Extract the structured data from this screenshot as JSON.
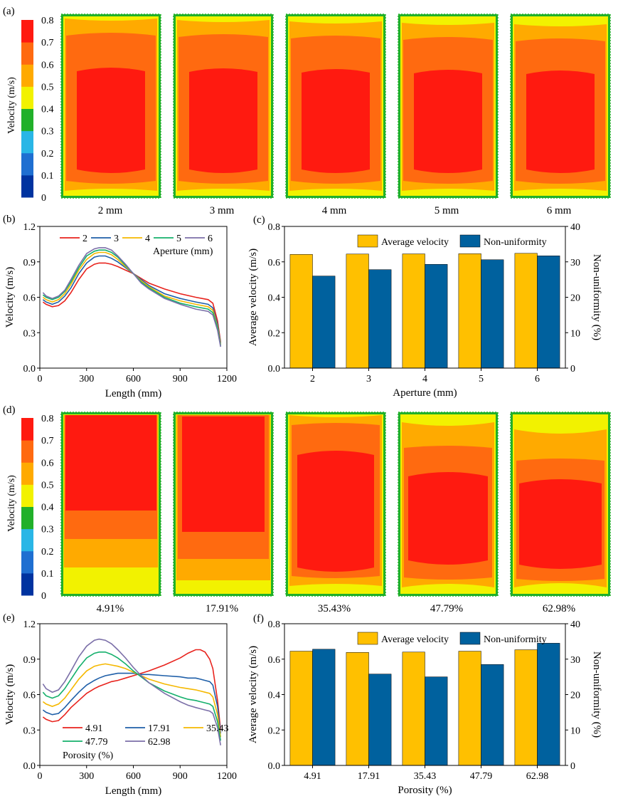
{
  "colors": {
    "scale": [
      "#0033a0",
      "#1f6fd1",
      "#29b6e6",
      "#21b02a",
      "#f2f200",
      "#ffaa00",
      "#ff6a10",
      "#ff1a10"
    ],
    "avg": "#FFC000",
    "nonuni": "#00619E",
    "lines5": [
      "#e8231d",
      "#1f5fa8",
      "#f5b800",
      "#15b06c",
      "#7b6fa8"
    ]
  },
  "panel_labels": {
    "a": "(a)",
    "b": "(b)",
    "c": "(c)",
    "d": "(d)",
    "e": "(e)",
    "f": "(f)"
  },
  "colorbar": {
    "label": "Velocity (m/s)",
    "ticks": [
      "0",
      "0.1",
      "0.2",
      "0.3",
      "0.4",
      "0.5",
      "0.6",
      "0.7",
      "0.8"
    ]
  },
  "contour_a": {
    "captions": [
      "2 mm",
      "3 mm",
      "4 mm",
      "5 mm",
      "6 mm"
    ]
  },
  "contour_d": {
    "captions": [
      "4.91%",
      "17.91%",
      "35.43%",
      "47.79%",
      "62.98%"
    ]
  },
  "chart_data": [
    {
      "id": "b",
      "type": "line",
      "title": "",
      "xlabel": "Length (mm)",
      "ylabel": "Velocity (m/s)",
      "xlim": [
        0,
        1200
      ],
      "ylim": [
        0,
        1.2
      ],
      "xticks": [
        0,
        300,
        600,
        900,
        1200
      ],
      "yticks": [
        0.0,
        0.3,
        0.6,
        0.9,
        1.2
      ],
      "legend_title": "Aperture (mm)",
      "x": [
        20,
        40,
        80,
        120,
        160,
        200,
        250,
        300,
        350,
        380,
        420,
        460,
        500,
        550,
        600,
        650,
        700,
        800,
        900,
        1000,
        1080,
        1110,
        1140,
        1160
      ],
      "series": [
        {
          "name": "2",
          "values": [
            0.56,
            0.54,
            0.52,
            0.53,
            0.57,
            0.64,
            0.75,
            0.84,
            0.88,
            0.89,
            0.89,
            0.88,
            0.86,
            0.83,
            0.8,
            0.76,
            0.72,
            0.67,
            0.63,
            0.6,
            0.58,
            0.55,
            0.4,
            0.22
          ]
        },
        {
          "name": "3",
          "values": [
            0.58,
            0.56,
            0.54,
            0.56,
            0.61,
            0.68,
            0.8,
            0.89,
            0.94,
            0.95,
            0.95,
            0.93,
            0.9,
            0.85,
            0.8,
            0.75,
            0.7,
            0.63,
            0.59,
            0.56,
            0.54,
            0.51,
            0.37,
            0.21
          ]
        },
        {
          "name": "4",
          "values": [
            0.6,
            0.58,
            0.56,
            0.58,
            0.63,
            0.71,
            0.83,
            0.92,
            0.97,
            0.98,
            0.98,
            0.96,
            0.92,
            0.86,
            0.8,
            0.74,
            0.69,
            0.61,
            0.57,
            0.54,
            0.52,
            0.49,
            0.35,
            0.2
          ]
        },
        {
          "name": "5",
          "values": [
            0.62,
            0.6,
            0.58,
            0.6,
            0.65,
            0.73,
            0.85,
            0.95,
            0.99,
            1.0,
            1.0,
            0.98,
            0.94,
            0.87,
            0.8,
            0.73,
            0.68,
            0.6,
            0.55,
            0.52,
            0.5,
            0.47,
            0.34,
            0.19
          ]
        },
        {
          "name": "6",
          "values": [
            0.64,
            0.61,
            0.59,
            0.61,
            0.66,
            0.75,
            0.87,
            0.97,
            1.01,
            1.02,
            1.02,
            1.0,
            0.95,
            0.88,
            0.8,
            0.72,
            0.67,
            0.59,
            0.54,
            0.5,
            0.48,
            0.45,
            0.32,
            0.18
          ]
        }
      ]
    },
    {
      "id": "c",
      "type": "bar",
      "title": "",
      "xlabel": "Aperture (mm)",
      "ylabel": "Average velocity (m/s)",
      "ylabel_right": "Non-uniformity (%)",
      "ylim": [
        0,
        0.8
      ],
      "ylim_right": [
        0,
        40
      ],
      "yticks": [
        0.0,
        0.2,
        0.4,
        0.6,
        0.8
      ],
      "yticks_right": [
        0,
        10,
        20,
        30,
        40
      ],
      "categories": [
        "2",
        "3",
        "4",
        "5",
        "6"
      ],
      "series": [
        {
          "name": "Average velocity",
          "axis": "left",
          "values": [
            0.642,
            0.644,
            0.645,
            0.646,
            0.648
          ]
        },
        {
          "name": "Non-uniformity",
          "axis": "right",
          "values": [
            26.0,
            27.8,
            29.3,
            30.6,
            31.7
          ]
        }
      ]
    },
    {
      "id": "e",
      "type": "line",
      "title": "",
      "xlabel": "Length (mm)",
      "ylabel": "Velocity (m/s)",
      "xlim": [
        0,
        1200
      ],
      "ylim": [
        0,
        1.2
      ],
      "xticks": [
        0,
        300,
        600,
        900,
        1200
      ],
      "yticks": [
        0.0,
        0.3,
        0.6,
        0.9,
        1.2
      ],
      "legend_title": "Porosity (%)",
      "x": [
        20,
        40,
        80,
        120,
        160,
        200,
        250,
        300,
        350,
        380,
        420,
        460,
        500,
        550,
        600,
        650,
        700,
        800,
        900,
        950,
        1000,
        1030,
        1060,
        1090,
        1110,
        1140,
        1160
      ],
      "series": [
        {
          "name": "4.91",
          "values": [
            0.41,
            0.39,
            0.37,
            0.38,
            0.43,
            0.49,
            0.55,
            0.61,
            0.65,
            0.67,
            0.69,
            0.71,
            0.72,
            0.74,
            0.76,
            0.78,
            0.8,
            0.85,
            0.91,
            0.95,
            0.98,
            0.98,
            0.96,
            0.9,
            0.82,
            0.55,
            0.3
          ]
        },
        {
          "name": "17.91",
          "values": [
            0.47,
            0.45,
            0.43,
            0.44,
            0.49,
            0.55,
            0.62,
            0.68,
            0.72,
            0.74,
            0.76,
            0.77,
            0.78,
            0.78,
            0.78,
            0.77,
            0.77,
            0.76,
            0.75,
            0.74,
            0.74,
            0.73,
            0.72,
            0.71,
            0.68,
            0.5,
            0.27
          ]
        },
        {
          "name": "35.43",
          "values": [
            0.54,
            0.52,
            0.5,
            0.52,
            0.57,
            0.64,
            0.73,
            0.8,
            0.84,
            0.85,
            0.86,
            0.85,
            0.84,
            0.82,
            0.79,
            0.76,
            0.73,
            0.69,
            0.66,
            0.65,
            0.64,
            0.63,
            0.62,
            0.61,
            0.58,
            0.43,
            0.24
          ]
        },
        {
          "name": "47.79",
          "values": [
            0.62,
            0.59,
            0.57,
            0.59,
            0.65,
            0.73,
            0.83,
            0.91,
            0.95,
            0.96,
            0.96,
            0.94,
            0.91,
            0.86,
            0.8,
            0.75,
            0.7,
            0.63,
            0.58,
            0.56,
            0.55,
            0.54,
            0.53,
            0.52,
            0.5,
            0.37,
            0.21
          ]
        },
        {
          "name": "62.98",
          "values": [
            0.69,
            0.65,
            0.62,
            0.64,
            0.71,
            0.8,
            0.92,
            1.01,
            1.06,
            1.07,
            1.06,
            1.03,
            0.98,
            0.91,
            0.83,
            0.76,
            0.7,
            0.61,
            0.54,
            0.51,
            0.49,
            0.48,
            0.47,
            0.46,
            0.44,
            0.32,
            0.17
          ]
        }
      ]
    },
    {
      "id": "f",
      "type": "bar",
      "title": "",
      "xlabel": "Porosity (%)",
      "ylabel": "Average velocity (m/s)",
      "ylabel_right": "Non-uniformity (%)",
      "ylim": [
        0,
        0.8
      ],
      "ylim_right": [
        0,
        40
      ],
      "yticks": [
        0.0,
        0.2,
        0.4,
        0.6,
        0.8
      ],
      "yticks_right": [
        0,
        10,
        20,
        30,
        40
      ],
      "categories": [
        "4.91",
        "17.91",
        "35.43",
        "47.79",
        "62.98"
      ],
      "series": [
        {
          "name": "Average velocity",
          "axis": "left",
          "values": [
            0.645,
            0.638,
            0.64,
            0.645,
            0.653
          ]
        },
        {
          "name": "Non-uniformity",
          "axis": "right",
          "values": [
            32.8,
            25.8,
            25.0,
            28.5,
            34.5
          ]
        }
      ]
    }
  ]
}
